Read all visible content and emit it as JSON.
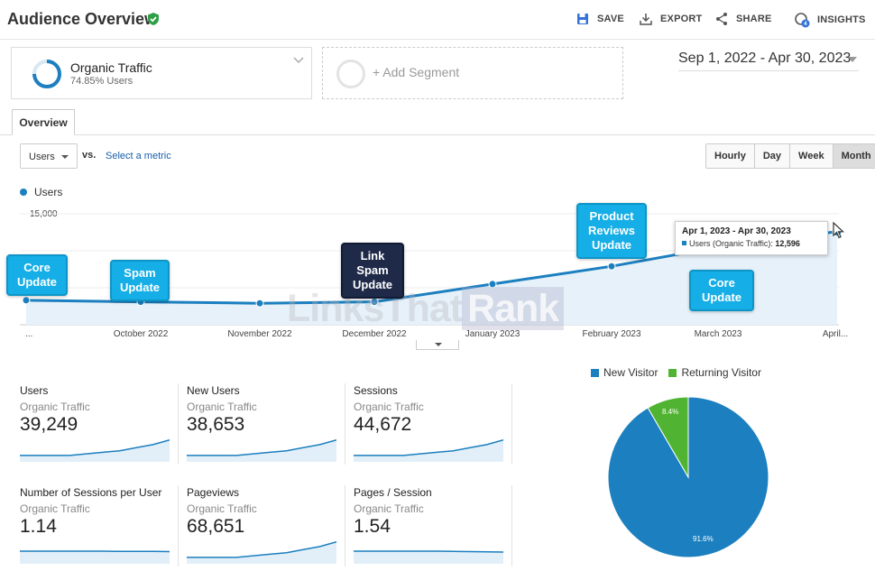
{
  "header": {
    "title": "Audience Overview",
    "save_label": "SAVE",
    "export_label": "EXPORT",
    "share_label": "SHARE",
    "insights_label": "INSIGHTS",
    "insights_badge": "4"
  },
  "segments": {
    "primary": {
      "name": "Organic Traffic",
      "percent_label": "74.85% Users",
      "percent": 74.85
    },
    "add_label": "+ Add Segment"
  },
  "date_range": "Sep 1, 2022 - Apr 30, 2023",
  "tabs": [
    {
      "label": "Overview",
      "active": true
    }
  ],
  "controls": {
    "metric_dropdown": "Users",
    "vs_label": "vs.",
    "select_metric_label": "Select a metric",
    "time_buttons": [
      {
        "label": "Hourly",
        "active": false
      },
      {
        "label": "Day",
        "active": false
      },
      {
        "label": "Week",
        "active": false
      },
      {
        "label": "Month",
        "active": true
      }
    ]
  },
  "watermark": {
    "part1": "LinksThat",
    "part2": "Rank"
  },
  "chart_data": {
    "type": "area",
    "legend": [
      "Users"
    ],
    "y_tick_label": "15,000",
    "x_tick_labels": [
      "...",
      "October 2022",
      "November 2022",
      "December 2022",
      "January 2023",
      "February 2023",
      "March 2023",
      "April..."
    ],
    "x": [
      "Sep 2022",
      "Oct 2022",
      "Nov 2022",
      "Dec 2022",
      "Jan 2023",
      "Feb 2023",
      "Mar 2023",
      "Apr 2023"
    ],
    "series": [
      {
        "name": "Users",
        "values": [
          3300,
          3100,
          2900,
          3100,
          5500,
          7900,
          10500,
          12596
        ]
      }
    ],
    "ylim": [
      0,
      15000
    ],
    "color": "#1c7fbf",
    "tooltip": {
      "date": "Apr 1, 2023 - Apr 30, 2023",
      "label": "Users (Organic Traffic):",
      "value": "12,596"
    },
    "annotations": [
      {
        "id": "core-update-1",
        "text": "Core Update",
        "style": "light"
      },
      {
        "id": "spam-update",
        "text": "Spam Update",
        "style": "light"
      },
      {
        "id": "link-spam-update",
        "text": "Link Spam Update",
        "style": "dark"
      },
      {
        "id": "product-reviews-update",
        "text": "Product Reviews Update",
        "style": "light"
      },
      {
        "id": "core-update-2",
        "text": "Core Update",
        "style": "light"
      }
    ]
  },
  "metrics": [
    {
      "title": "Users",
      "segment": "Organic Traffic",
      "value": "39,249",
      "trend": [
        3,
        3,
        3,
        3,
        4,
        5,
        6,
        8,
        10,
        13
      ]
    },
    {
      "title": "New Users",
      "segment": "Organic Traffic",
      "value": "38,653",
      "trend": [
        3,
        3,
        3,
        3,
        4,
        5,
        6,
        8,
        10,
        13
      ]
    },
    {
      "title": "Sessions",
      "segment": "Organic Traffic",
      "value": "44,672",
      "trend": [
        3,
        3,
        3,
        3,
        4,
        5,
        6,
        8,
        10,
        13
      ]
    },
    {
      "title": "Number of Sessions per User",
      "segment": "Organic Traffic",
      "value": "1.14",
      "trend": [
        7,
        7,
        7,
        7,
        7,
        7,
        6.8,
        6.8,
        6.8,
        6.7
      ]
    },
    {
      "title": "Pageviews",
      "segment": "Organic Traffic",
      "value": "68,651",
      "trend": [
        3,
        3,
        3,
        3,
        4,
        5,
        6,
        8,
        10,
        13
      ]
    },
    {
      "title": "Pages / Session",
      "segment": "Organic Traffic",
      "value": "1.54",
      "trend": [
        7,
        7,
        7,
        7,
        7,
        7,
        6.8,
        6.7,
        6.6,
        6.4
      ]
    }
  ],
  "pie": {
    "legend": [
      {
        "label": "New Visitor",
        "color": "#1c7fbf"
      },
      {
        "label": "Returning Visitor",
        "color": "#50b432"
      }
    ],
    "slices": [
      {
        "label": "New Visitor",
        "value": 91.6,
        "display": "91.6%"
      },
      {
        "label": "Returning Visitor",
        "value": 8.4,
        "display": "8.4%"
      }
    ]
  }
}
